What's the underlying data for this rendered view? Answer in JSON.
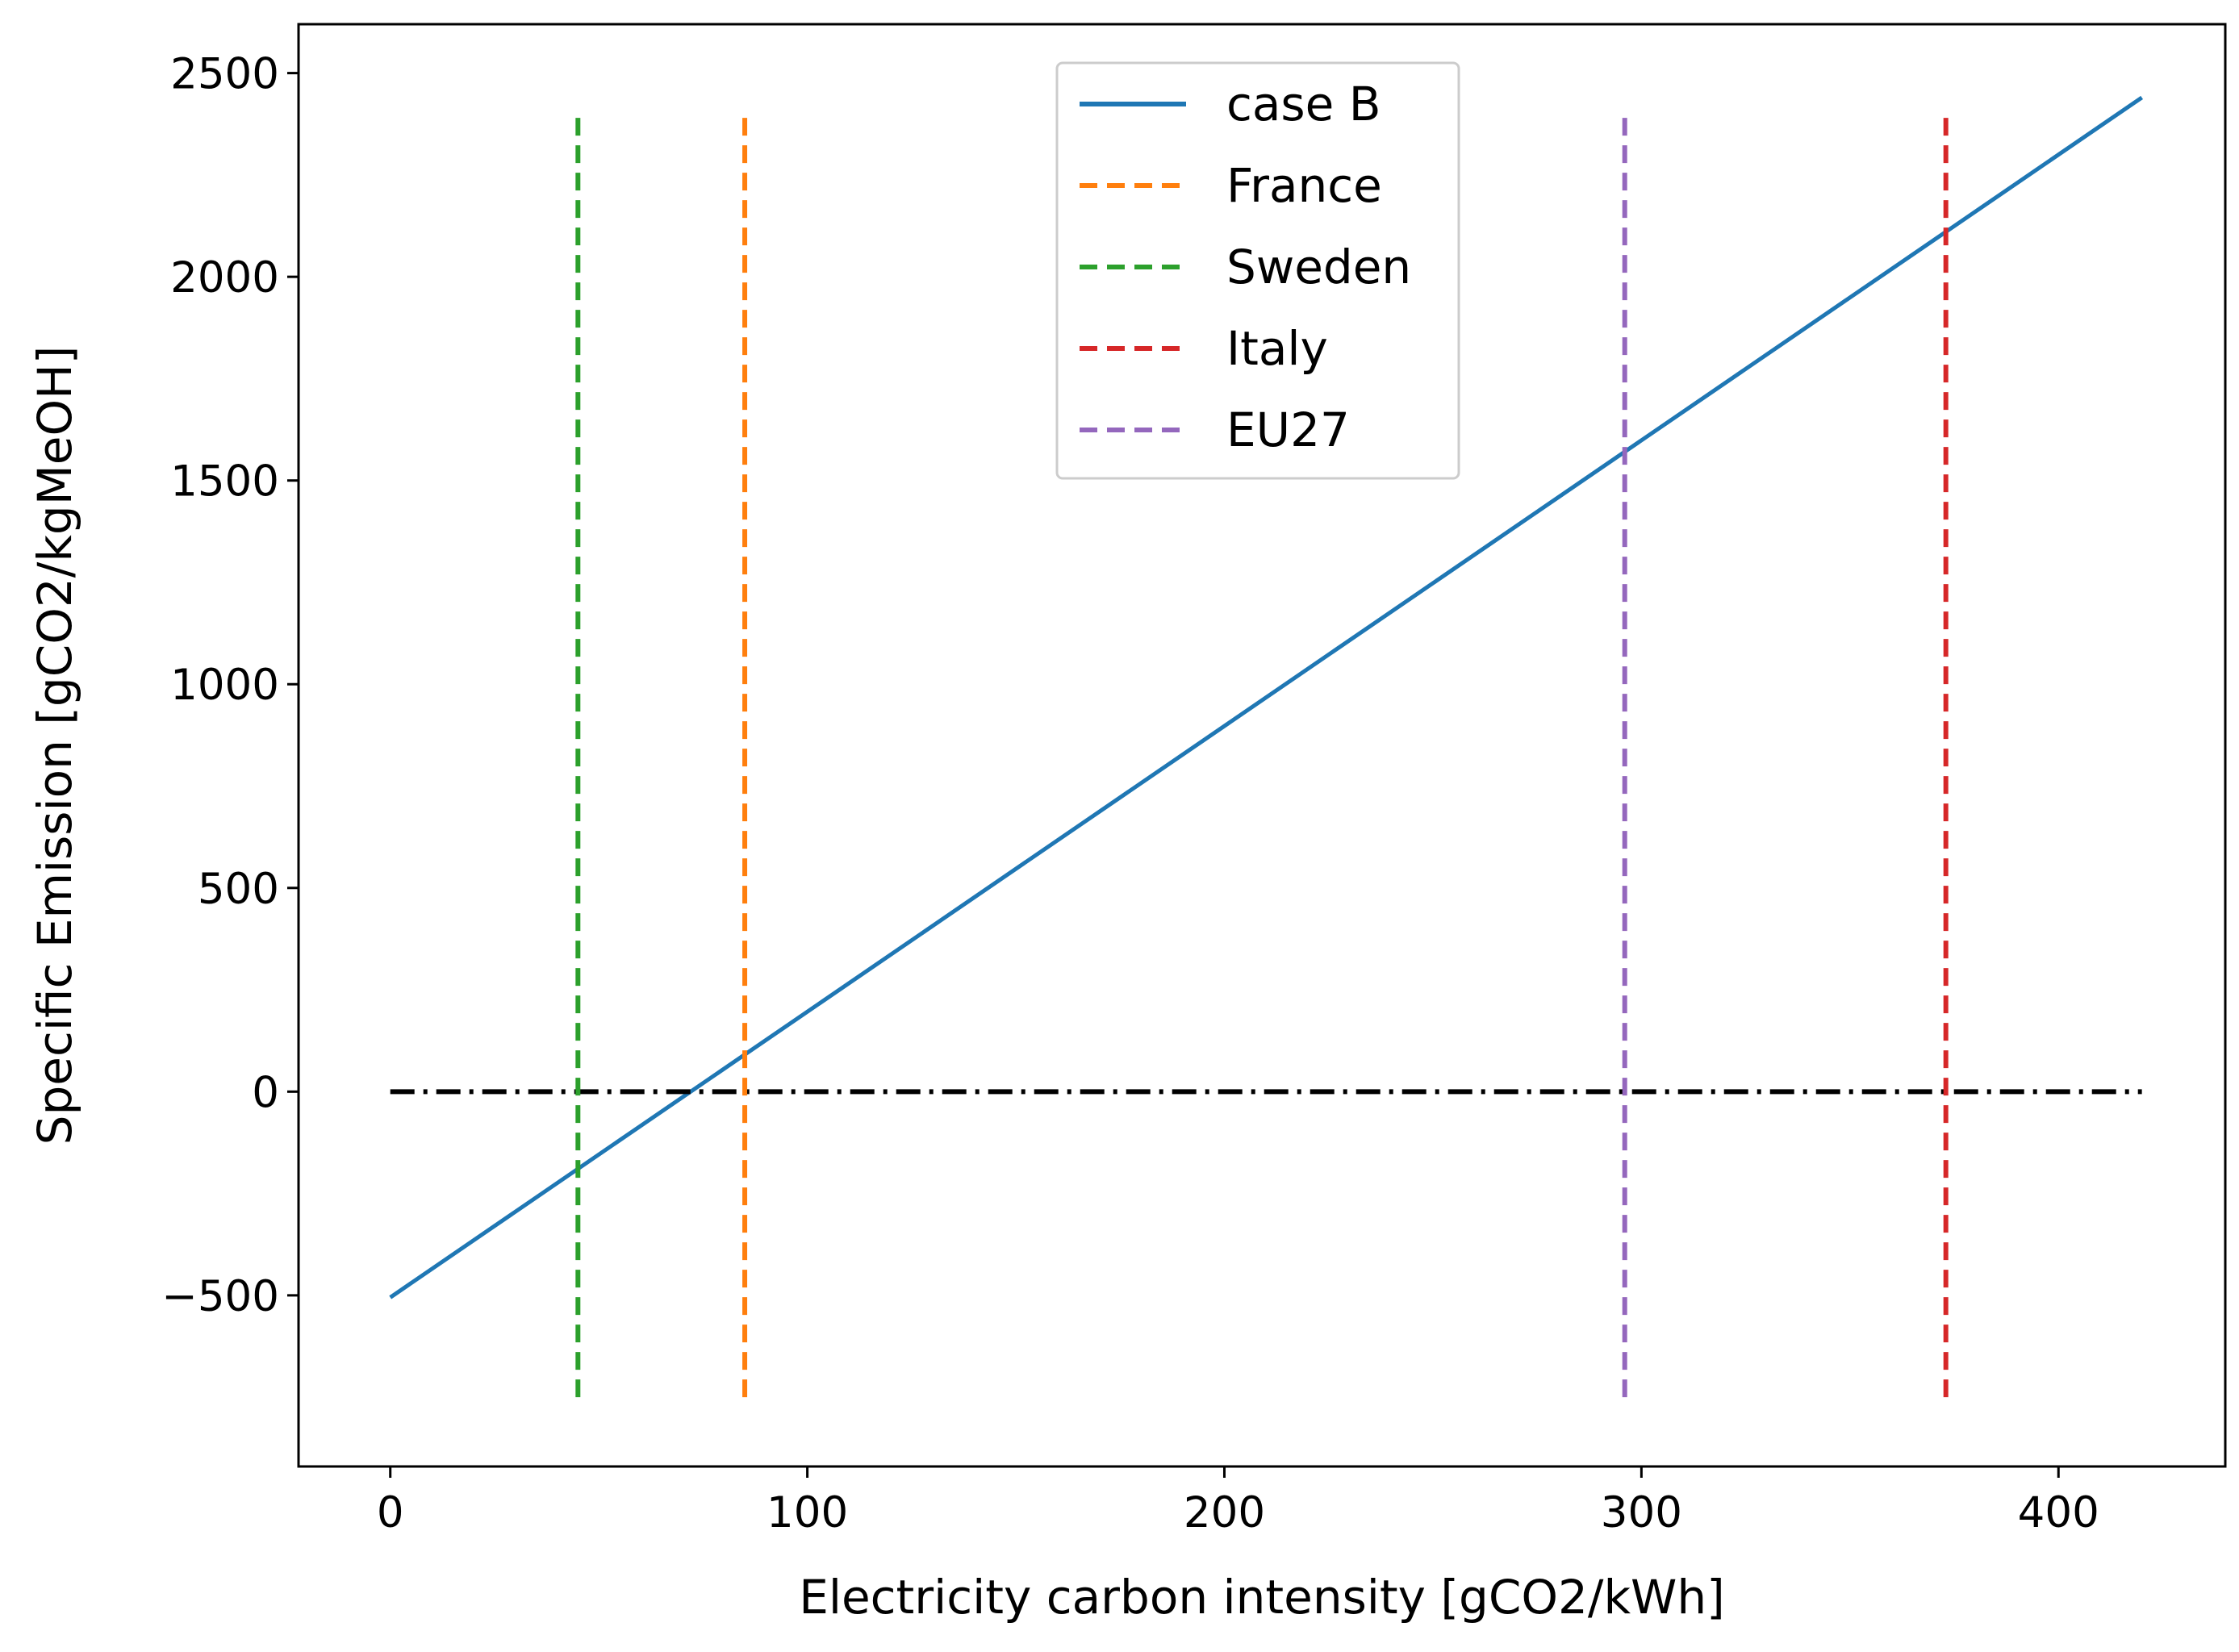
{
  "chart_data": {
    "type": "line",
    "title": "",
    "xlabel": "Electricity carbon intensity [gCO2/kWh]",
    "ylabel": "Specific Emission [gCO2/kgMeOH]",
    "xlim": [
      -22,
      440
    ],
    "ylim": [
      -920,
      2620
    ],
    "xticks": [
      0,
      100,
      200,
      300,
      400
    ],
    "yticks": [
      -500,
      0,
      500,
      1000,
      1500,
      2000,
      2500
    ],
    "xtick_labels": [
      "0",
      "100",
      "200",
      "300",
      "400"
    ],
    "ytick_labels": [
      "−500",
      "0",
      "500",
      "1000",
      "1500",
      "2000",
      "2500"
    ],
    "grid": false,
    "legend_position": "top-center",
    "series": [
      {
        "name": "case B",
        "kind": "line",
        "color": "#1f77b4",
        "style": "solid",
        "x": [
          0,
          420
        ],
        "y": [
          -505,
          2440
        ]
      }
    ],
    "vlines": [
      {
        "name": "France",
        "x": 85,
        "ymin": -750,
        "ymax": 2400,
        "color": "#ff7f0e",
        "style": "dashed"
      },
      {
        "name": "Sweden",
        "x": 45,
        "ymin": -750,
        "ymax": 2400,
        "color": "#2ca02c",
        "style": "dashed"
      },
      {
        "name": "Italy",
        "x": 373,
        "ymin": -750,
        "ymax": 2400,
        "color": "#d62728",
        "style": "dashed"
      },
      {
        "name": "EU27",
        "x": 296,
        "ymin": -750,
        "ymax": 2400,
        "color": "#9467bd",
        "style": "dashed"
      }
    ],
    "hlines": [
      {
        "name": "zero-reference",
        "y": 0,
        "xmin": 0,
        "xmax": 420,
        "color": "#000000",
        "style": "dashdot"
      }
    ],
    "legend_entries": [
      "case B",
      "France",
      "Sweden",
      "Italy",
      "EU27"
    ]
  }
}
